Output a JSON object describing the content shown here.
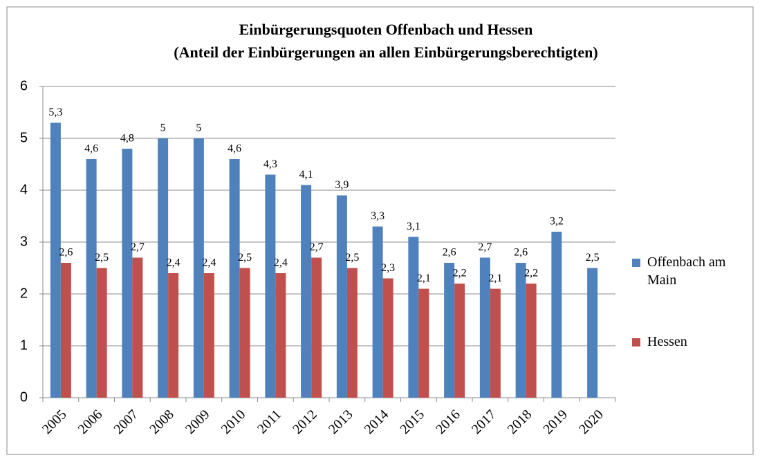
{
  "chart_data": {
    "type": "bar",
    "title": [
      "Einbürgerungsquoten Offenbach und Hessen",
      "(Anteil der Einbürgerungen an allen Einbürgerungsberechtigten)"
    ],
    "categories": [
      "2005",
      "2006",
      "2007",
      "2008",
      "2009",
      "2010",
      "2011",
      "2012",
      "2013",
      "2014",
      "2015",
      "2016",
      "2017",
      "2018",
      "2019",
      "2020"
    ],
    "series": [
      {
        "name": "Offenbach am Main",
        "color": "#4f81bd",
        "values": [
          5.3,
          4.6,
          4.8,
          5,
          5,
          4.6,
          4.3,
          4.1,
          3.9,
          3.3,
          3.1,
          2.6,
          2.7,
          2.6,
          3.2,
          2.5
        ],
        "value_labels": [
          "5,3",
          "4,6",
          "4,8",
          "5",
          "5",
          "4,6",
          "4,3",
          "4,1",
          "3,9",
          "3,3",
          "3,1",
          "2,6",
          "2,7",
          "2,6",
          "3,2",
          "2,5"
        ]
      },
      {
        "name": "Hessen",
        "color": "#c0504d",
        "values": [
          2.6,
          2.5,
          2.7,
          2.4,
          2.4,
          2.5,
          2.4,
          2.7,
          2.5,
          2.3,
          2.1,
          2.2,
          2.1,
          2.2,
          null,
          null
        ],
        "value_labels": [
          "2,6",
          "2,5",
          "2,7",
          "2,4",
          "2,4",
          "2,5",
          "2,4",
          "2,7",
          "2,5",
          "2,3",
          "2,1",
          "2,2",
          "2,1",
          "2,2",
          null,
          null
        ]
      }
    ],
    "ylim": [
      0,
      6
    ],
    "yticks": [
      0,
      1,
      2,
      3,
      4,
      5,
      6
    ],
    "grid": true,
    "legend": "right"
  }
}
